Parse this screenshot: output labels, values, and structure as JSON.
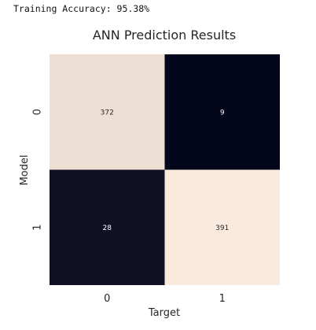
{
  "output": {
    "text": "Training Accuracy: 95.38%"
  },
  "chart_data": {
    "type": "heatmap",
    "title": "ANN Prediction Results",
    "xlabel": "Target",
    "ylabel": "Model",
    "x_categories": [
      "0",
      "1"
    ],
    "y_categories": [
      "0",
      "1"
    ],
    "values": [
      [
        372,
        9
      ],
      [
        28,
        391
      ]
    ],
    "colorbar": false,
    "annotations": true,
    "colors": {
      "high": "#faeade",
      "low": "#03051a"
    }
  }
}
